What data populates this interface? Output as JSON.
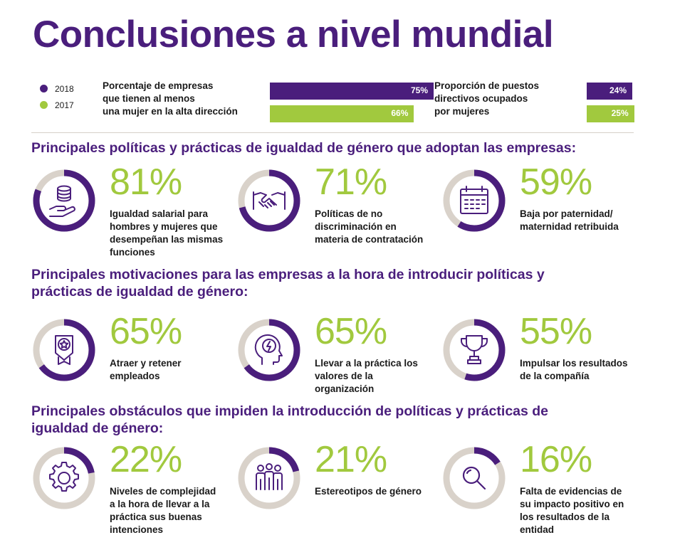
{
  "title": "Conclusiones a nivel mundial",
  "colors": {
    "purple": "#4a1e7c",
    "green": "#a1c93e",
    "grey": "#d9d2ca"
  },
  "legend": [
    {
      "year": "2018",
      "color": "#4a1e7c"
    },
    {
      "year": "2017",
      "color": "#a1c93e"
    }
  ],
  "kpis": {
    "women_in_management": {
      "label_lines": [
        "Porcentaje de empresas",
        "que tienen al menos",
        "una mujer en la alta dirección"
      ],
      "v2018": 75,
      "v2018_label": "75%",
      "v2017": 66,
      "v2017_label": "66%"
    },
    "senior_roles_women": {
      "label_lines": [
        "Proporción de puestos",
        "directivos ocupados",
        "por mujeres"
      ],
      "v2018": 24,
      "v2018_label": "24%",
      "v2017": 25,
      "v2017_label": "25%"
    }
  },
  "sections": [
    {
      "title_lines": [
        "Principales políticas y prácticas de igualdad de género que adoptan las empresas:"
      ],
      "items": [
        {
          "value": 81,
          "label": "81%",
          "icon": "coins-hand-icon",
          "desc_lines": [
            "Igualdad salarial para",
            "hombres y mujeres que",
            "desempeñan las mismas",
            "funciones"
          ]
        },
        {
          "value": 71,
          "label": "71%",
          "icon": "handshake-icon",
          "desc_lines": [
            "Políticas de no",
            "discriminación en",
            "materia de contratación"
          ]
        },
        {
          "value": 59,
          "label": "59%",
          "icon": "calendar-icon",
          "desc_lines": [
            "Baja por paternidad/",
            "maternidad retribuida"
          ]
        }
      ]
    },
    {
      "title_lines": [
        "Principales motivaciones para las empresas a la hora de introducir políticas y",
        "prácticas de igualdad de género:"
      ],
      "items": [
        {
          "value": 65,
          "label": "65%",
          "icon": "award-star-icon",
          "desc_lines": [
            "Atraer y retener",
            "empleados"
          ]
        },
        {
          "value": 65,
          "label": "65%",
          "icon": "head-bolt-icon",
          "desc_lines": [
            "Llevar a la práctica los",
            "valores de la",
            "organización"
          ]
        },
        {
          "value": 55,
          "label": "55%",
          "icon": "trophy-icon",
          "desc_lines": [
            "Impulsar los resultados",
            "de la compañía"
          ]
        }
      ]
    },
    {
      "title_lines": [
        "Principales obstáculos que impiden la introducción de políticas y prácticas de",
        "igualdad de género:"
      ],
      "items": [
        {
          "value": 22,
          "label": "22%",
          "icon": "gear-icon",
          "desc_lines": [
            "Niveles de complejidad",
            "a la hora de llevar a la",
            "práctica sus buenas",
            "intenciones"
          ]
        },
        {
          "value": 21,
          "label": "21%",
          "icon": "people-group-icon",
          "desc_lines": [
            "Estereotipos de género"
          ]
        },
        {
          "value": 16,
          "label": "16%",
          "icon": "magnifier-icon",
          "desc_lines": [
            "Falta de evidencias de",
            "su impacto positivo en",
            "los resultados de la",
            "entidad"
          ]
        }
      ]
    }
  ],
  "chart_data": [
    {
      "type": "bar",
      "categories": [
        "2018",
        "2017"
      ],
      "series": [
        {
          "values": [
            75,
            66
          ]
        }
      ],
      "xlim": [
        0,
        100
      ]
    },
    {
      "type": "bar",
      "categories": [
        "2018",
        "2017"
      ],
      "series": [
        {
          "values": [
            24,
            25
          ]
        }
      ],
      "xlim": [
        0,
        100
      ]
    },
    {
      "type": "pie",
      "categories": [
        "Igualdad salarial para hombres y mujeres que desempeñan las mismas funciones",
        "Políticas de no discriminación en materia de contratación",
        "Baja por paternidad/ maternidad retribuida",
        "Atraer y retener empleados",
        "Llevar a la práctica los valores de la organización",
        "Impulsar los resultados de la compañía",
        "Niveles de complejidad a la hora de llevar a la práctica sus buenas intenciones",
        "Estereotipos de género",
        "Falta de evidencias de su impacto positivo en los resultados de la entidad"
      ],
      "values": [
        81,
        71,
        59,
        65,
        65,
        55,
        22,
        21,
        16
      ]
    }
  ]
}
